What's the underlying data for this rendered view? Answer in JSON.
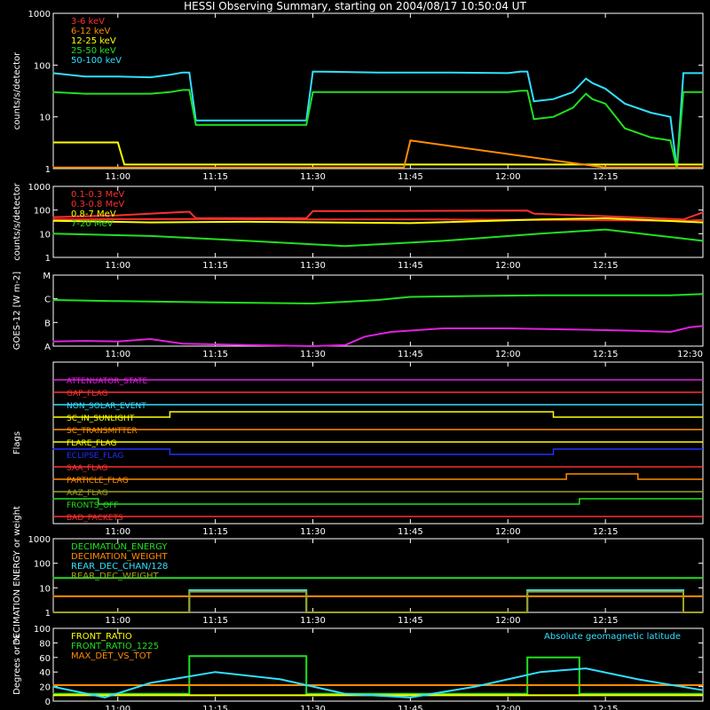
{
  "title": "HESSI Observing Summary, starting on 2004/08/17 10:50:04 UT",
  "colors": {
    "background": "#000000",
    "axis": "#ffffff",
    "red": "#ff3030",
    "orange": "#ff8c00",
    "yellow": "#ffff00",
    "green": "#20e020",
    "cyan": "#30e0ff",
    "magenta": "#e020e0",
    "blue": "#2030ff",
    "olive": "#a0a020",
    "white": "#ffffff"
  },
  "chart_data": [
    {
      "id": "p1",
      "type": "line",
      "ylabel": "counts/s/detector",
      "yscale": "log",
      "ylim": [
        1,
        1000
      ],
      "yticks": [
        "1",
        "10",
        "100",
        "1000"
      ],
      "xlim": [
        "10:50:04",
        "12:30"
      ],
      "xticks": [
        "11:00",
        "11:15",
        "11:30",
        "11:45",
        "12:00",
        "12:15"
      ],
      "legend": [
        {
          "label": "3-6 keV",
          "color": "#ff3030"
        },
        {
          "label": "6-12 keV",
          "color": "#ff8c00"
        },
        {
          "label": "12-25 keV",
          "color": "#ffff00"
        },
        {
          "label": "25-50 keV",
          "color": "#20e020"
        },
        {
          "label": "50-100 keV",
          "color": "#30e0ff"
        }
      ],
      "series": [
        {
          "name": "50-100 keV",
          "color": "#30e0ff",
          "x": [
            "10:50",
            "10:55",
            "11:00",
            "11:05",
            "11:08",
            "11:10",
            "11:11",
            "11:12",
            "11:20",
            "11:28",
            "11:29",
            "11:30",
            "11:40",
            "11:50",
            "12:00",
            "12:02",
            "12:03",
            "12:04",
            "12:07",
            "12:10",
            "12:12",
            "12:13",
            "12:15",
            "12:18",
            "12:22",
            "12:25",
            "12:26",
            "12:27",
            "12:30"
          ],
          "y": [
            70,
            60,
            60,
            58,
            65,
            72,
            72,
            8.5,
            8.5,
            8.5,
            8.5,
            75,
            72,
            72,
            70,
            75,
            75,
            20,
            22,
            30,
            55,
            45,
            35,
            18,
            12,
            10,
            1,
            70,
            70
          ]
        },
        {
          "name": "25-50 keV",
          "color": "#20e020",
          "x": [
            "10:50",
            "10:55",
            "11:00",
            "11:05",
            "11:08",
            "11:10",
            "11:11",
            "11:12",
            "11:20",
            "11:28",
            "11:29",
            "11:30",
            "11:40",
            "11:50",
            "12:00",
            "12:02",
            "12:03",
            "12:04",
            "12:07",
            "12:10",
            "12:12",
            "12:13",
            "12:15",
            "12:18",
            "12:22",
            "12:25",
            "12:26",
            "12:27",
            "12:30"
          ],
          "y": [
            30,
            28,
            28,
            28,
            30,
            33,
            33,
            7,
            7,
            7,
            7,
            30,
            30,
            30,
            30,
            32,
            32,
            9,
            10,
            15,
            28,
            22,
            18,
            6,
            4,
            3.5,
            1,
            30,
            30
          ]
        },
        {
          "name": "12-25 keV",
          "color": "#ffff00",
          "x": [
            "10:50",
            "10:55",
            "11:00",
            "11:01",
            "11:30",
            "12:10",
            "12:20",
            "12:30"
          ],
          "y": [
            3.2,
            3.2,
            3.2,
            1.2,
            1.2,
            1.2,
            1.2,
            1.2
          ]
        },
        {
          "name": "6-12 keV",
          "color": "#ff8c00",
          "x": [
            "10:50",
            "11:00",
            "11:01",
            "11:44",
            "11:45",
            "12:15",
            "12:30"
          ],
          "y": [
            1.05,
            1.05,
            1.05,
            1.05,
            3.5,
            1.05,
            1.05
          ]
        }
      ]
    },
    {
      "id": "p2",
      "type": "line",
      "ylabel": "counts/s/detector",
      "yscale": "log",
      "ylim": [
        1,
        1000
      ],
      "yticks": [
        "1",
        "10",
        "100",
        "1000"
      ],
      "xlim": [
        "10:50:04",
        "12:30"
      ],
      "xticks": [
        "11:00",
        "11:15",
        "11:30",
        "11:45",
        "12:00",
        "12:15"
      ],
      "legend": [
        {
          "label": "0.1-0.3 MeV",
          "color": "#ff3030"
        },
        {
          "label": "0.3-0.8 MeV",
          "color": "#ff3030"
        },
        {
          "label": "0.8-7 MeV",
          "color": "#ffff00"
        },
        {
          "label": "7-20 MeV",
          "color": "#20e020"
        }
      ],
      "series": [
        {
          "name": "0.1-0.3 MeV",
          "color": "#ff3030",
          "x": [
            "10:50",
            "11:00",
            "11:11",
            "11:12",
            "11:29",
            "11:30",
            "12:03",
            "12:04",
            "12:15",
            "12:27",
            "12:30"
          ],
          "y": [
            50,
            60,
            85,
            45,
            45,
            90,
            95,
            70,
            55,
            40,
            80
          ]
        },
        {
          "name": "0.3-0.8 MeV",
          "color": "#ff3030",
          "x": [
            "10:50",
            "11:10",
            "11:30",
            "11:50",
            "12:10",
            "12:27",
            "12:30"
          ],
          "y": [
            40,
            42,
            40,
            40,
            38,
            35,
            38
          ]
        },
        {
          "name": "0.8-7 MeV",
          "color": "#ffff00",
          "x": [
            "10:50",
            "11:05",
            "11:20",
            "11:45",
            "12:05",
            "12:15",
            "12:30"
          ],
          "y": [
            35,
            30,
            32,
            28,
            40,
            45,
            30
          ]
        },
        {
          "name": "7-20 MeV",
          "color": "#20e020",
          "x": [
            "10:50",
            "11:05",
            "11:20",
            "11:35",
            "11:50",
            "12:05",
            "12:15",
            "12:30"
          ],
          "y": [
            10,
            8,
            5,
            3,
            5,
            10,
            15,
            5
          ]
        }
      ]
    },
    {
      "id": "p3",
      "type": "line",
      "ylabel": "GOES-12 [W m-2]",
      "ycats": [
        "A",
        "B",
        "C",
        "M"
      ],
      "ylim": [
        0,
        3
      ],
      "xlim": [
        "10:50:04",
        "12:30"
      ],
      "xticks": [
        "11:00",
        "11:15",
        "11:30",
        "11:45",
        "12:00",
        "12:15",
        "12:30"
      ],
      "series": [
        {
          "name": "",
          "color": "#20e020",
          "x": [
            "10:50",
            "11:00",
            "11:15",
            "11:30",
            "11:40",
            "11:45",
            "11:55",
            "12:05",
            "12:15",
            "12:25",
            "12:30"
          ],
          "y": [
            1.95,
            1.9,
            1.85,
            1.8,
            1.95,
            2.08,
            2.12,
            2.15,
            2.15,
            2.15,
            2.2
          ]
        },
        {
          "name": "",
          "color": "#e020e0",
          "x": [
            "10:50",
            "10:55",
            "11:00",
            "11:05",
            "11:10",
            "11:20",
            "11:30",
            "11:35",
            "11:38",
            "11:42",
            "11:50",
            "12:00",
            "12:10",
            "12:20",
            "12:25",
            "12:28",
            "12:30"
          ],
          "y": [
            0.2,
            0.22,
            0.2,
            0.3,
            0.1,
            0.05,
            0.0,
            0.05,
            0.4,
            0.6,
            0.75,
            0.75,
            0.7,
            0.65,
            0.6,
            0.8,
            0.85
          ]
        }
      ]
    },
    {
      "id": "p4",
      "type": "line",
      "ylabel": "Flags",
      "xlim": [
        "10:50:04",
        "12:30"
      ],
      "xticks": [
        "11:00",
        "11:15",
        "11:30",
        "11:45",
        "12:00",
        "12:15"
      ],
      "flags": [
        {
          "label": "ATTENUATOR_STATE",
          "color": "#e020e0"
        },
        {
          "label": "GAP_FLAG",
          "color": "#ff3030"
        },
        {
          "label": "NON_SOLAR_EVENT",
          "color": "#30e0ff"
        },
        {
          "label": "SC_IN_SUNLIGHT",
          "color": "#ffff00",
          "segments": [
            [
              "10:50",
              "11:08",
              0
            ],
            [
              "11:08",
              "12:07",
              1
            ],
            [
              "12:07",
              "12:30",
              0
            ]
          ]
        },
        {
          "label": "SC_TRANSMITTER",
          "color": "#ff8c00"
        },
        {
          "label": "FLARE_FLAG",
          "color": "#ffff00"
        },
        {
          "label": "ECLIPSE_FLAG",
          "color": "#2030ff",
          "segments": [
            [
              "10:50",
              "11:08",
              1
            ],
            [
              "11:08",
              "12:07",
              0
            ],
            [
              "12:07",
              "12:30",
              1
            ]
          ]
        },
        {
          "label": "SAA_FLAG",
          "color": "#ff3030"
        },
        {
          "label": "PARTICLE_FLAG",
          "color": "#ff8c00",
          "segments": [
            [
              "10:50",
              "12:09",
              0
            ],
            [
              "12:09",
              "12:20",
              1
            ],
            [
              "12:20",
              "12:30",
              0
            ]
          ]
        },
        {
          "label": "AAZ_FLAG",
          "color": "#a0a020"
        },
        {
          "label": "FRONTS_OFF",
          "color": "#20e020",
          "segments": [
            [
              "10:50",
              "10:57",
              1
            ],
            [
              "10:57",
              "12:11",
              0
            ],
            [
              "12:11",
              "12:30",
              1
            ]
          ]
        },
        {
          "label": "BAD_PACKETS",
          "color": "#ff3030"
        }
      ]
    },
    {
      "id": "p5",
      "type": "line",
      "ylabel": "DECIMATION ENERGY or weight",
      "yscale": "log",
      "ylim": [
        1,
        1000
      ],
      "yticks": [
        "1",
        "10",
        "100",
        "1000"
      ],
      "xlim": [
        "10:50:04",
        "12:30"
      ],
      "xticks": [
        "11:00",
        "11:15",
        "11:30",
        "11:45",
        "12:00",
        "12:15"
      ],
      "legend": [
        {
          "label": "DECIMATION_ENERGY",
          "color": "#20e020"
        },
        {
          "label": "DECIMATION_WEIGHT",
          "color": "#ff8c00"
        },
        {
          "label": "REAR_DEC_CHAN/128",
          "color": "#30e0ff"
        },
        {
          "label": "REAR_DEC_WEIGHT",
          "color": "#a0a020"
        }
      ],
      "series": [
        {
          "name": "DECIMATION_ENERGY",
          "color": "#20e020",
          "x": [
            "10:50",
            "12:30"
          ],
          "y": [
            25,
            25
          ]
        },
        {
          "name": "DECIMATION_WEIGHT",
          "color": "#ff8c00",
          "x": [
            "10:50",
            "12:30"
          ],
          "y": [
            4.5,
            4.5
          ]
        },
        {
          "name": "REAR_DEC_CHAN/128",
          "color": "#30e0ff",
          "x": [
            "10:50",
            "11:11",
            "11:11",
            "11:29",
            "11:29",
            "12:03",
            "12:03",
            "12:27",
            "12:27",
            "12:30"
          ],
          "y": [
            1,
            1,
            8,
            8,
            1,
            1,
            8,
            8,
            1,
            1
          ]
        },
        {
          "name": "REAR_DEC_WEIGHT",
          "color": "#a0a020",
          "x": [
            "10:50",
            "11:11",
            "11:11",
            "11:29",
            "11:29",
            "12:03",
            "12:03",
            "12:27",
            "12:27",
            "12:30"
          ],
          "y": [
            1,
            1,
            7,
            7,
            1,
            1,
            7,
            7,
            1,
            1
          ]
        }
      ]
    },
    {
      "id": "p6",
      "type": "line",
      "ylabel": "Degrees or %",
      "ylim": [
        0,
        100
      ],
      "yticks": [
        "0",
        "20",
        "40",
        "60",
        "80",
        "100"
      ],
      "xlim": [
        "10:50:04",
        "12:30"
      ],
      "xticks": [
        "11:00",
        "11:15",
        "11:30",
        "11:45",
        "12:00",
        "12:15"
      ],
      "legend": [
        {
          "label": "FRONT_RATIO",
          "color": "#ffff00"
        },
        {
          "label": "FRONT_RATIO_1225",
          "color": "#20e020"
        },
        {
          "label": "MAX_DET_VS_TOT",
          "color": "#ff8c00"
        }
      ],
      "annotation": {
        "label": "Absolute geomagnetic latitude",
        "color": "#30e0ff"
      },
      "series": [
        {
          "name": "FRONT_RATIO_1225",
          "color": "#20e020",
          "x": [
            "10:50",
            "11:11",
            "11:11",
            "11:29",
            "11:29",
            "12:03",
            "12:03",
            "12:11",
            "12:11",
            "12:30"
          ],
          "y": [
            10,
            10,
            62,
            62,
            10,
            10,
            60,
            60,
            10,
            10
          ]
        },
        {
          "name": "MAX_DET_VS_TOT",
          "color": "#ff8c00",
          "x": [
            "10:50",
            "12:30"
          ],
          "y": [
            22,
            22
          ]
        },
        {
          "name": "FRONT_RATIO",
          "color": "#ffff00",
          "x": [
            "10:50",
            "12:30"
          ],
          "y": [
            8,
            8
          ]
        },
        {
          "name": "Absolute geomagnetic latitude",
          "color": "#30e0ff",
          "x": [
            "10:50",
            "10:58",
            "11:05",
            "11:15",
            "11:25",
            "11:35",
            "11:45",
            "11:55",
            "12:05",
            "12:12",
            "12:20",
            "12:30"
          ],
          "y": [
            20,
            5,
            25,
            40,
            30,
            10,
            5,
            20,
            40,
            45,
            30,
            15
          ]
        }
      ]
    }
  ]
}
